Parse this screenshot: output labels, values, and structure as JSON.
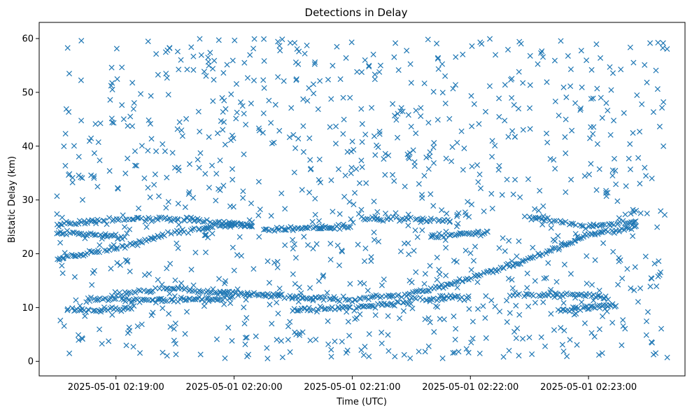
{
  "chart_data": {
    "type": "scatter",
    "title": "Detections in Delay",
    "xlabel": "Time (UTC)",
    "ylabel": "Bistatic Delay (km)",
    "x_start": "2025-05-01 02:18:30",
    "x_end": "2025-05-01 02:23:40",
    "x_ticks": [
      "2025-05-01 02:19:00",
      "2025-05-01 02:20:00",
      "2025-05-01 02:21:00",
      "2025-05-01 02:22:00",
      "2025-05-01 02:23:00"
    ],
    "xlim": [
      "2025-05-01 02:18:21",
      "2025-05-01 02:23:49"
    ],
    "ylim": [
      -2.7,
      63
    ],
    "y_ticks": [
      0,
      10,
      20,
      30,
      40,
      50,
      60
    ],
    "grid": false,
    "marker": "x",
    "color": "#1f77b4",
    "tracks": [
      {
        "points": [
          [
            "2025-05-01 02:18:30",
            19
          ],
          [
            "2025-05-01 02:19:00",
            21
          ],
          [
            "2025-05-01 02:19:30",
            24
          ],
          [
            "2025-05-01 02:20:00",
            25.5
          ],
          [
            "2025-05-01 02:20:10",
            25.2
          ]
        ]
      },
      {
        "points": [
          [
            "2025-05-01 02:18:30",
            25.5
          ],
          [
            "2025-05-01 02:19:00",
            26.5
          ],
          [
            "2025-05-01 02:19:30",
            26.5
          ],
          [
            "2025-05-01 02:20:00",
            25.5
          ],
          [
            "2025-05-01 02:20:10",
            25
          ]
        ]
      },
      {
        "points": [
          [
            "2025-05-01 02:18:30",
            24
          ],
          [
            "2025-05-01 02:18:50",
            23.5
          ],
          [
            "2025-05-01 02:19:05",
            23
          ]
        ]
      },
      {
        "points": [
          [
            "2025-05-01 02:18:35",
            9.5
          ],
          [
            "2025-05-01 02:19:00",
            9.8
          ],
          [
            "2025-05-01 02:19:10",
            10
          ]
        ]
      },
      {
        "points": [
          [
            "2025-05-01 02:19:00",
            12.5
          ],
          [
            "2025-05-01 02:19:30",
            13.5
          ],
          [
            "2025-05-01 02:19:45",
            13
          ]
        ]
      },
      {
        "points": [
          [
            "2025-05-01 02:18:45",
            11.5
          ],
          [
            "2025-05-01 02:19:45",
            11.5
          ],
          [
            "2025-05-01 02:20:00",
            12
          ]
        ]
      },
      {
        "points": [
          [
            "2025-05-01 02:19:45",
            13
          ],
          [
            "2025-05-01 02:20:30",
            12
          ],
          [
            "2025-05-01 02:21:00",
            11.5
          ],
          [
            "2025-05-01 02:21:30",
            12.5
          ],
          [
            "2025-05-01 02:22:00",
            15.5
          ],
          [
            "2025-05-01 02:22:30",
            19
          ],
          [
            "2025-05-01 02:23:00",
            23.5
          ],
          [
            "2025-05-01 02:23:25",
            25
          ]
        ]
      },
      {
        "points": [
          [
            "2025-05-01 02:20:15",
            24.5
          ],
          [
            "2025-05-01 02:21:00",
            25
          ]
        ]
      },
      {
        "points": [
          [
            "2025-05-01 02:20:30",
            9.5
          ],
          [
            "2025-05-01 02:21:00",
            10
          ],
          [
            "2025-05-01 02:21:30",
            11
          ]
        ]
      },
      {
        "points": [
          [
            "2025-05-01 02:21:05",
            26.5
          ],
          [
            "2025-05-01 02:21:30",
            26.5
          ],
          [
            "2025-05-01 02:21:50",
            26
          ]
        ]
      },
      {
        "points": [
          [
            "2025-05-01 02:21:30",
            11.5
          ],
          [
            "2025-05-01 02:22:00",
            12
          ]
        ]
      },
      {
        "points": [
          [
            "2025-05-01 02:21:40",
            23.5
          ],
          [
            "2025-05-01 02:22:10",
            24
          ]
        ]
      },
      {
        "points": [
          [
            "2025-05-01 02:22:20",
            12.5
          ],
          [
            "2025-05-01 02:22:50",
            12.3
          ],
          [
            "2025-05-01 02:23:10",
            12
          ]
        ]
      },
      {
        "points": [
          [
            "2025-05-01 02:22:30",
            27
          ],
          [
            "2025-05-01 02:23:00",
            25
          ],
          [
            "2025-05-01 02:23:25",
            26
          ]
        ]
      },
      {
        "points": [
          [
            "2025-05-01 02:22:45",
            9.5
          ],
          [
            "2025-05-01 02:23:00",
            10
          ],
          [
            "2025-05-01 02:23:15",
            10.5
          ]
        ]
      }
    ]
  }
}
